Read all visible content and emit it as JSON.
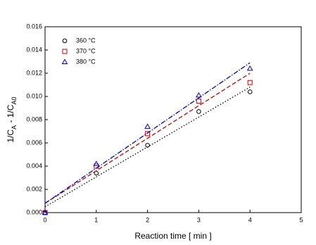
{
  "chart_data": {
    "type": "scatter",
    "xlabel": "Reaction time [ min ]",
    "ylabel_parts": [
      "1/C",
      "A",
      " - 1/C",
      "A0"
    ],
    "x": [
      0,
      1,
      2,
      3,
      4
    ],
    "xlim": [
      0,
      5
    ],
    "xticks": [
      0,
      1,
      2,
      3,
      4,
      5
    ],
    "ylim": [
      0,
      0.016
    ],
    "yticks": [
      {
        "value": 0,
        "label": "0.000"
      },
      {
        "value": 0.002,
        "label": "0.002"
      },
      {
        "value": 0.004,
        "label": "0.004"
      },
      {
        "value": 0.006,
        "label": "0.006"
      },
      {
        "value": 0.008,
        "label": "0.008"
      },
      {
        "value": 0.01,
        "label": "0.010"
      },
      {
        "value": 0.012,
        "label": "0.012"
      },
      {
        "value": 0.014,
        "label": "0.014"
      },
      {
        "value": 0.016,
        "label": "0.016"
      }
    ],
    "legend": "upper left",
    "series": [
      {
        "name": "360 °C",
        "color": "#000000",
        "marker": "circle",
        "fit_style": "dotted",
        "values": [
          0,
          0.0034,
          0.0058,
          0.0087,
          0.0104
        ],
        "fit": {
          "x": [
            0,
            4
          ],
          "values": [
            0.0005,
            0.0108
          ]
        }
      },
      {
        "name": "370 °C",
        "color": "#cc0000",
        "marker": "square",
        "fit_style": "dashed",
        "values": [
          0,
          0.004,
          0.0068,
          0.0096,
          0.0112
        ],
        "fit": {
          "x": [
            0,
            4
          ],
          "values": [
            0.0008,
            0.012
          ]
        }
      },
      {
        "name": "380 °C",
        "color": "#0000cc",
        "marker": "triangle",
        "fit_style": "dashdot",
        "values": [
          0,
          0.0042,
          0.0074,
          0.0101,
          0.0124
        ],
        "fit": {
          "x": [
            0,
            4
          ],
          "values": [
            0.0008,
            0.0129
          ]
        }
      }
    ]
  }
}
